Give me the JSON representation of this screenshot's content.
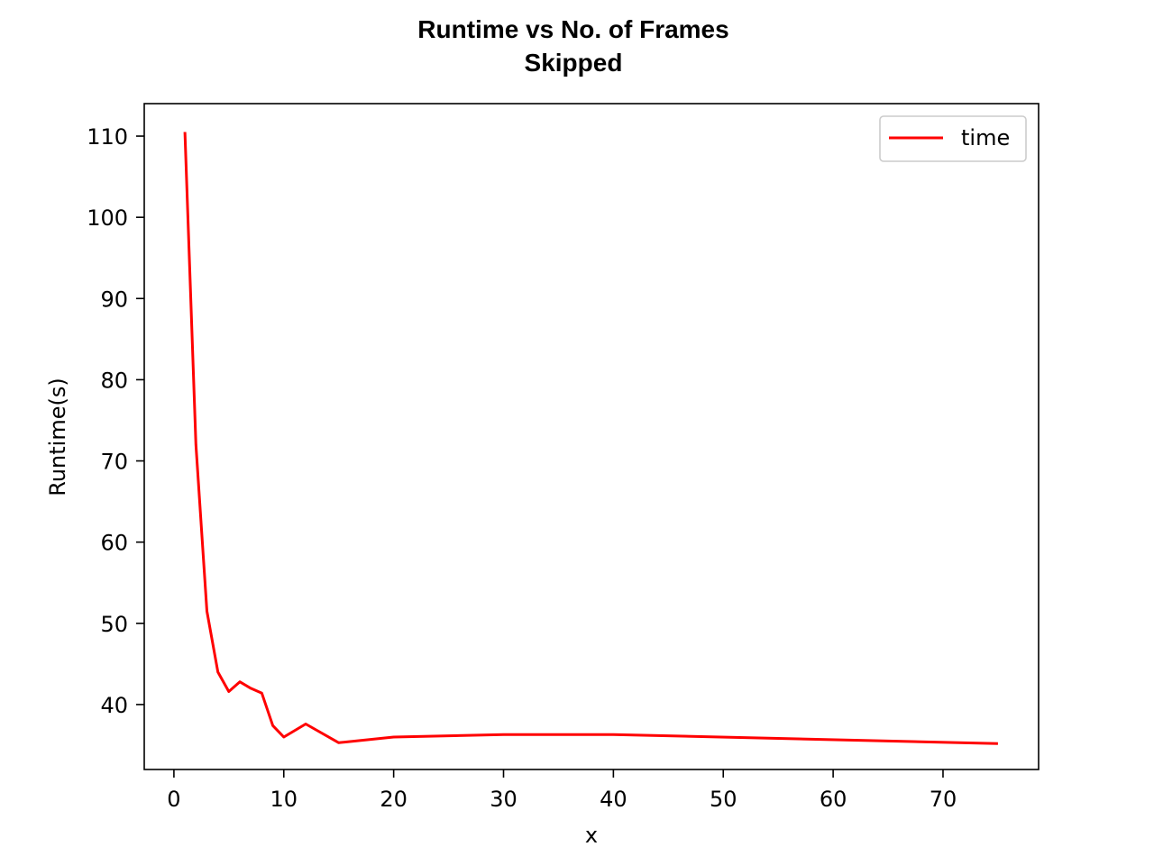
{
  "chart_data": {
    "type": "line",
    "title_line1": "Runtime vs No. of Frames",
    "title_line2": "Skipped",
    "xlabel": "x",
    "ylabel": "Runtime(s)",
    "xlim": [
      -2.7,
      78.7
    ],
    "ylim": [
      32.0,
      114.0
    ],
    "xticks": [
      0,
      10,
      20,
      30,
      40,
      50,
      60,
      70
    ],
    "yticks": [
      40,
      50,
      60,
      70,
      80,
      90,
      100,
      110
    ],
    "grid": false,
    "legend_position": "top-right",
    "series": [
      {
        "name": "time",
        "color": "#ff0000",
        "x": [
          1,
          2,
          3,
          4,
          5,
          6,
          7,
          8,
          9,
          10,
          12,
          15,
          20,
          30,
          40,
          75
        ],
        "y": [
          110.5,
          72.0,
          51.5,
          44.0,
          41.6,
          42.8,
          42.0,
          41.4,
          37.4,
          36.0,
          37.6,
          35.3,
          36.0,
          36.3,
          36.3,
          35.2
        ]
      }
    ]
  }
}
